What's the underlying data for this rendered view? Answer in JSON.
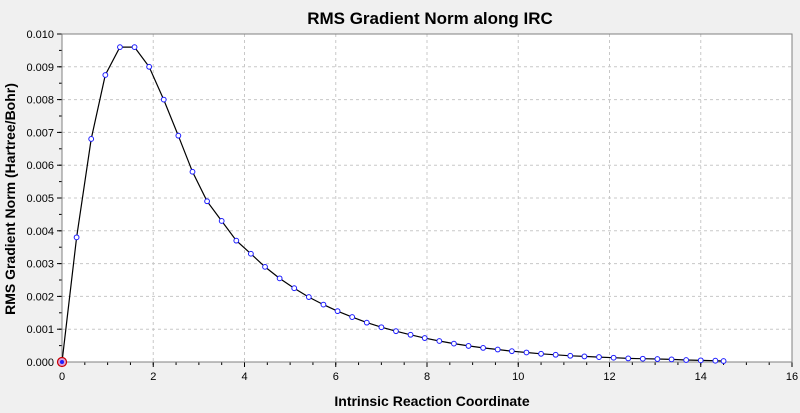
{
  "chart_data": {
    "type": "line",
    "title": "RMS Gradient Norm along IRC",
    "xlabel": "Intrinsic Reaction Coordinate",
    "ylabel": "RMS Gradient Norm (Hartree/Bohr)",
    "xlim": [
      0,
      16
    ],
    "ylim": [
      0,
      0.01
    ],
    "x_ticks": [
      "0",
      "2",
      "4",
      "6",
      "8",
      "10",
      "12",
      "14",
      "16"
    ],
    "y_ticks": [
      "0.000",
      "0.001",
      "0.002",
      "0.003",
      "0.004",
      "0.005",
      "0.006",
      "0.007",
      "0.008",
      "0.009",
      "0.010"
    ],
    "grid": true,
    "legend": "none",
    "colors": {
      "line": "#000000",
      "marker": "#1c1cff",
      "highlight": "#cc0000",
      "plot_background": "#ffffff",
      "grid": "#c8c8c8",
      "window_background": "#f0f0f0"
    },
    "series": [
      {
        "x": [
          0,
          0.32,
          0.64,
          0.95,
          1.27,
          1.59,
          1.91,
          2.23,
          2.55,
          2.86,
          3.18,
          3.5,
          3.82,
          4.14,
          4.45,
          4.77,
          5.09,
          5.41,
          5.73,
          6.04,
          6.36,
          6.68,
          7.0,
          7.32,
          7.64,
          7.95,
          8.27,
          8.59,
          8.91,
          9.23,
          9.55,
          9.86,
          10.18,
          10.5,
          10.82,
          11.14,
          11.45,
          11.77,
          12.09,
          12.41,
          12.73,
          13.05,
          13.36,
          13.68,
          14.0,
          14.32,
          14.5
        ],
        "y": [
          0.0,
          0.0038,
          0.0068,
          0.00875,
          0.0096,
          0.0096,
          0.009,
          0.008,
          0.0069,
          0.0058,
          0.0049,
          0.0043,
          0.0037,
          0.0033,
          0.0029,
          0.00255,
          0.00225,
          0.00198,
          0.00175,
          0.00155,
          0.00137,
          0.0012,
          0.00106,
          0.00094,
          0.00083,
          0.00073,
          0.00064,
          0.00056,
          0.00049,
          0.00043,
          0.00038,
          0.00033,
          0.00029,
          0.00025,
          0.00022,
          0.00019,
          0.00017,
          0.00015,
          0.00013,
          0.00011,
          0.0001,
          9e-05,
          8e-05,
          6e-05,
          5e-05,
          4e-05,
          3e-05
        ]
      }
    ],
    "highlighted_point": [
      0,
      0
    ]
  }
}
